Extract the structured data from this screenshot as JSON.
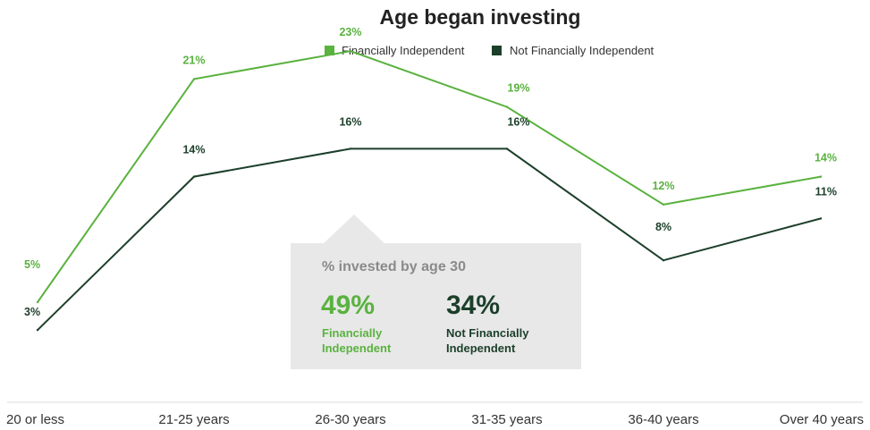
{
  "colors": {
    "financially_independent": "#5ab23f",
    "not_financially_independent": "#1c3f2a",
    "callout_bg": "#e8e8e8",
    "axis_line": "#dddddd"
  },
  "chart_data": {
    "type": "line",
    "title": "Age began investing",
    "xlabel": "",
    "ylabel": "",
    "categories": [
      "20 or less",
      "21-25 years",
      "26-30 years",
      "31-35 years",
      "36-40 years",
      "Over 40 years"
    ],
    "series": [
      {
        "name": "Financially Independent",
        "values": [
          5,
          21,
          23,
          19,
          12,
          14
        ],
        "labels": [
          "5%",
          "21%",
          "23%",
          "19%",
          "12%",
          "14%"
        ]
      },
      {
        "name": "Not Financially Independent",
        "values": [
          3,
          14,
          16,
          16,
          8,
          11
        ],
        "labels": [
          "3%",
          "14%",
          "16%",
          "16%",
          "8%",
          "11%"
        ]
      }
    ],
    "ylim": [
      0,
      25
    ],
    "grid": false,
    "legend": "top-center"
  },
  "callout": {
    "title": "% invested by age 30",
    "items": [
      {
        "value": "49%",
        "label_line1": "Financially",
        "label_line2": "Independent"
      },
      {
        "value": "34%",
        "label_line1": "Not Financially",
        "label_line2": "Independent"
      }
    ]
  }
}
